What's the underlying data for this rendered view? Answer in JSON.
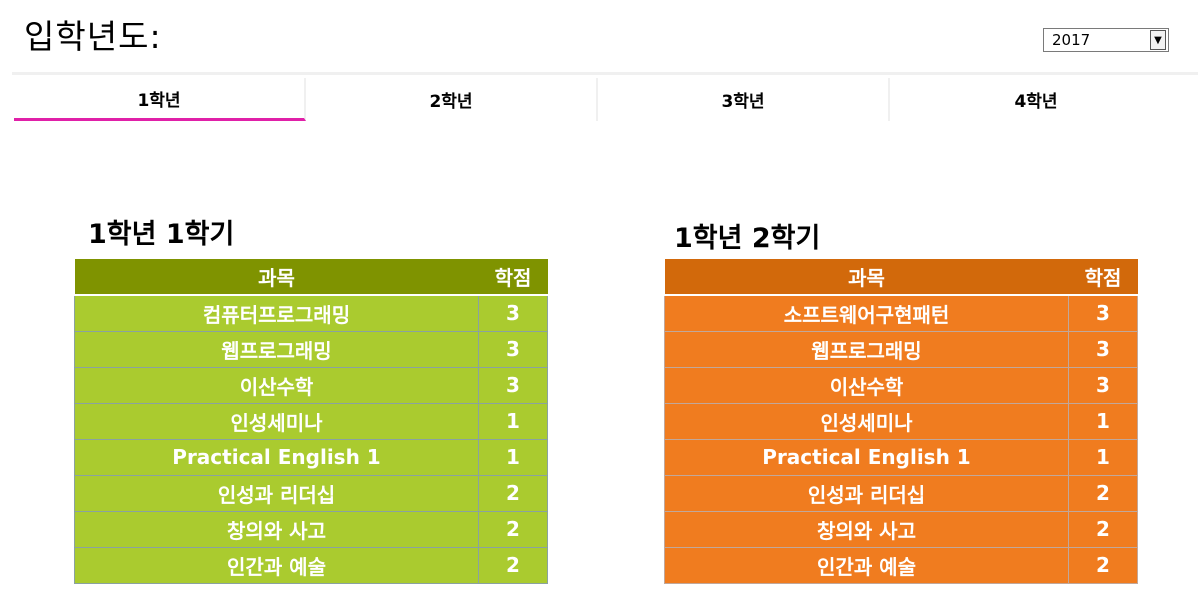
{
  "header": {
    "title": "입학년도:"
  },
  "year_select": {
    "value": "2017"
  },
  "tabs": [
    {
      "label": "1학년",
      "active": true
    },
    {
      "label": "2학년",
      "active": false
    },
    {
      "label": "3학년",
      "active": false
    },
    {
      "label": "4학년",
      "active": false
    }
  ],
  "semesters": [
    {
      "title": "1학년 1학기",
      "header_subject": "과목",
      "header_credit": "학점",
      "color_header": "#7f9300",
      "color_body": "#aacb2f",
      "rows": [
        {
          "subject": "컴퓨터프로그래밍",
          "credit": "3"
        },
        {
          "subject": "웹프로그래밍",
          "credit": "3"
        },
        {
          "subject": "이산수학",
          "credit": "3"
        },
        {
          "subject": "인성세미나",
          "credit": "1"
        },
        {
          "subject": "Practical English 1",
          "credit": "1"
        },
        {
          "subject": "인성과 리더십",
          "credit": "2"
        },
        {
          "subject": "창의와 사고",
          "credit": "2"
        },
        {
          "subject": "인간과 예술",
          "credit": "2"
        }
      ]
    },
    {
      "title": "1학년 2학기",
      "header_subject": "과목",
      "header_credit": "학점",
      "color_header": "#d2690b",
      "color_body": "#f07c1f",
      "rows": [
        {
          "subject": "소프트웨어구현패턴",
          "credit": "3"
        },
        {
          "subject": "웹프로그래밍",
          "credit": "3"
        },
        {
          "subject": "이산수학",
          "credit": "3"
        },
        {
          "subject": "인성세미나",
          "credit": "1"
        },
        {
          "subject": "Practical English 1",
          "credit": "1"
        },
        {
          "subject": "인성과 리더십",
          "credit": "2"
        },
        {
          "subject": "창의와 사고",
          "credit": "2"
        },
        {
          "subject": "인간과 예술",
          "credit": "2"
        }
      ]
    }
  ]
}
